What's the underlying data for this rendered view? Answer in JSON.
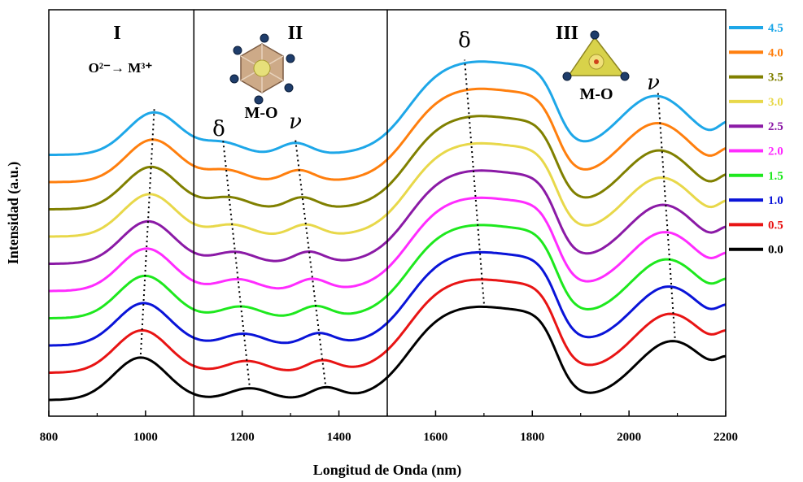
{
  "chart_data": {
    "type": "line",
    "xlabel": "Longitud de Onda (nm)",
    "ylabel": "Intensidad (a.u.)",
    "xlim": [
      800,
      2200
    ],
    "xticks": [
      800,
      1000,
      1200,
      1400,
      1600,
      1800,
      2000,
      2200
    ],
    "yticks_shown": false,
    "legend_position": "right",
    "regions": [
      {
        "label": "I",
        "from": 800,
        "to": 1100
      },
      {
        "label": "II",
        "from": 1100,
        "to": 1500
      },
      {
        "label": "III",
        "from": 1500,
        "to": 2200
      }
    ],
    "annotations": {
      "charge_transfer": "O²⁻→ M³⁺",
      "mo_octahedral": "M-O",
      "mo_tetrahedral": "M-O",
      "delta_II": "δ",
      "nu_II": "ν",
      "delta_III": "δ",
      "nu_III": "ν"
    },
    "series": [
      {
        "name": "4.5",
        "color": "#1ea7e8",
        "offset": 9
      },
      {
        "name": "4.0",
        "color": "#ff7f0e",
        "offset": 8
      },
      {
        "name": "3.5",
        "color": "#808000",
        "offset": 7
      },
      {
        "name": "3.0",
        "color": "#e8d84a",
        "offset": 6
      },
      {
        "name": "2.5",
        "color": "#8b1aa6",
        "offset": 5
      },
      {
        "name": "2.0",
        "color": "#ff2cff",
        "offset": 4
      },
      {
        "name": "1.5",
        "color": "#1ee81e",
        "offset": 3
      },
      {
        "name": "1.0",
        "color": "#0a14d8",
        "offset": 2
      },
      {
        "name": "0.5",
        "color": "#e81414",
        "offset": 1
      },
      {
        "name": "0.0",
        "color": "#000000",
        "offset": 0
      }
    ]
  }
}
